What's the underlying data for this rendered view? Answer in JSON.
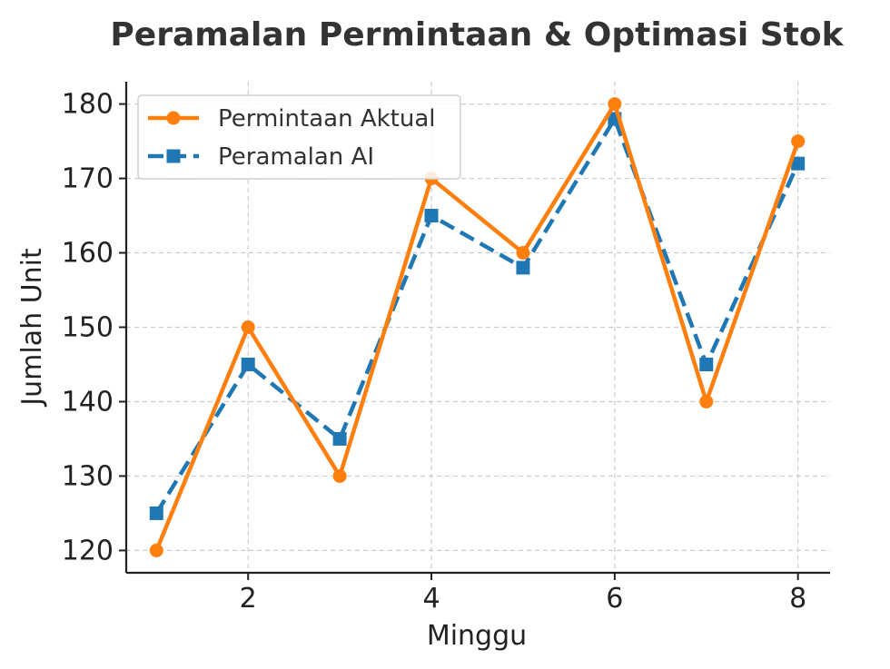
{
  "chart_data": {
    "type": "line",
    "title": "Peramalan Permintaan & Optimasi Stok",
    "xlabel": "Minggu",
    "ylabel": "Jumlah Unit",
    "x": [
      1,
      2,
      3,
      4,
      5,
      6,
      7,
      8
    ],
    "xlim": [
      0.67,
      8.35
    ],
    "ylim": [
      117,
      183
    ],
    "xticks": [
      2,
      4,
      6,
      8
    ],
    "yticks": [
      120,
      130,
      140,
      150,
      160,
      170,
      180
    ],
    "grid": true,
    "legend_position": "top-left",
    "series": [
      {
        "name": "Permintaan Aktual",
        "values": [
          120,
          150,
          130,
          170,
          160,
          180,
          140,
          175
        ],
        "color": "#ff7f0e",
        "line_style": "solid",
        "marker": "circle"
      },
      {
        "name": "Peramalan AI",
        "values": [
          125,
          145,
          135,
          165,
          158,
          178,
          145,
          172
        ],
        "color": "#1f77b4",
        "line_style": "dashed",
        "marker": "square"
      }
    ]
  }
}
